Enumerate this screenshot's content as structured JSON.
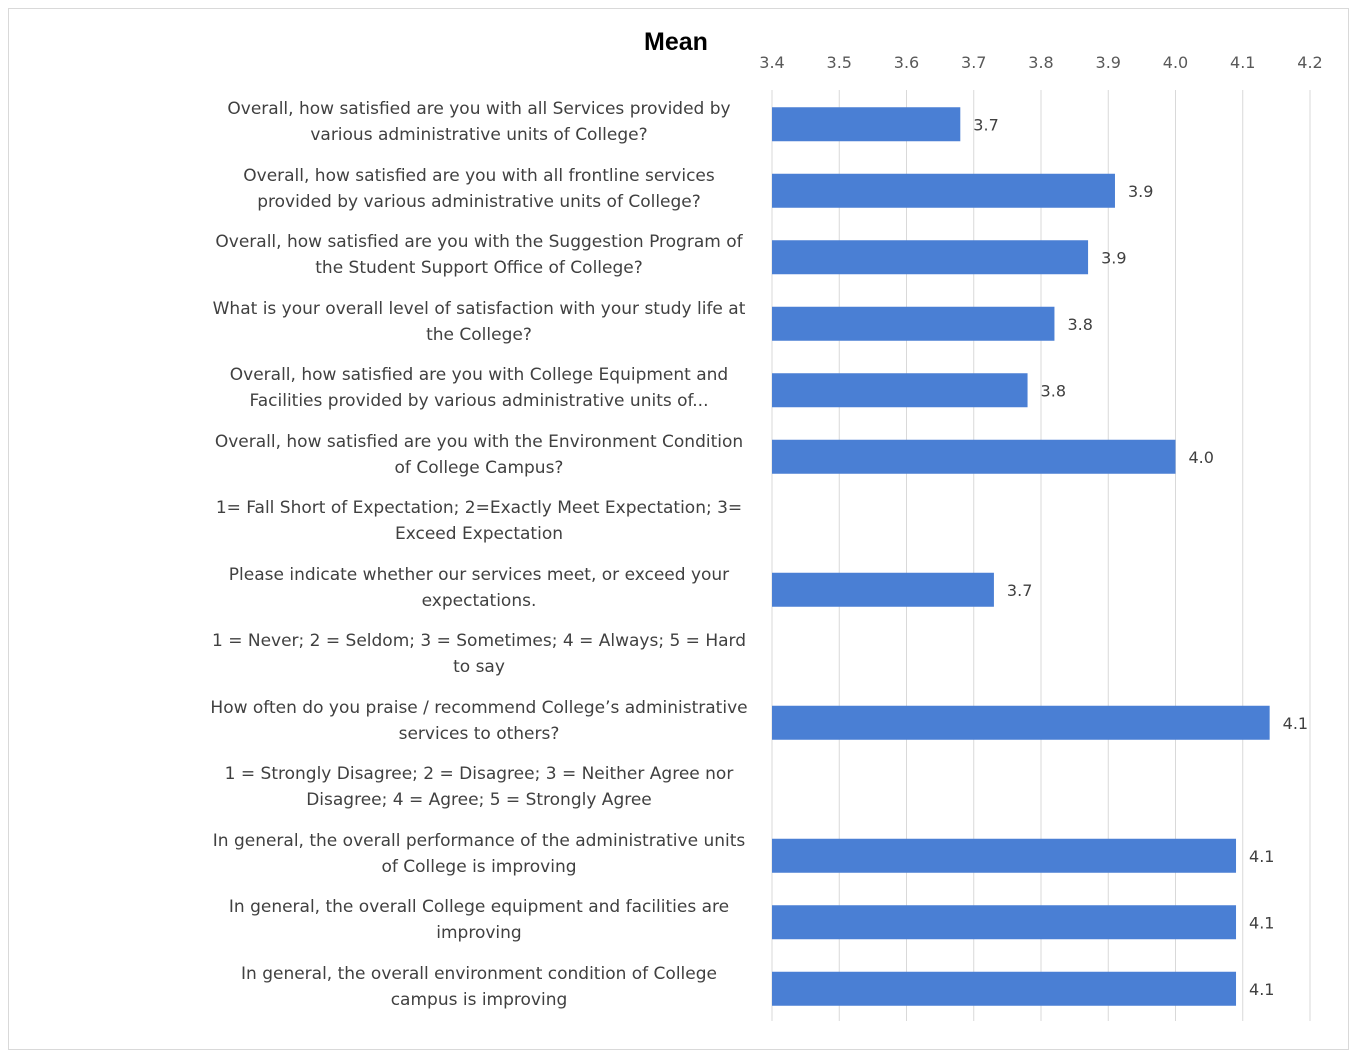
{
  "chart_data": {
    "type": "bar",
    "orientation": "horizontal",
    "title": "Mean",
    "xlim": [
      3.4,
      4.2
    ],
    "x_ticks": [
      "3.4",
      "3.5",
      "3.6",
      "3.7",
      "3.8",
      "3.9",
      "4.0",
      "4.1",
      "4.2"
    ],
    "grid": "vertical",
    "bar_color": "#4a7fd4",
    "categories": [
      "Overall, how satisfied are you with all Services provided by various administrative units of College?",
      "Overall, how satisfied are you with all frontline services provided by various administrative units of College?",
      "Overall, how satisfied are you with the Suggestion Program of the  Student Support Office of College?",
      "What is your overall level of satisfaction with your study life at the College?",
      "Overall, how satisfied are you with College Equipment and Facilities provided by various administrative units of...",
      "Overall, how satisfied are you with the Environment Condition of College Campus?",
      "1= Fall Short of Expectation; 2=Exactly Meet Expectation; 3= Exceed Expectation",
      "Please indicate whether our services meet, or exceed your expectations.",
      "1 = Never; 2 = Seldom; 3 = Sometimes; 4 = Always; 5 = Hard to say",
      "How often do you praise / recommend College’s administrative services to others?",
      "1 = Strongly Disagree; 2 = Disagree; 3 = Neither Agree nor Disagree; 4 = Agree; 5 = Strongly Agree",
      "In general, the overall performance of the administrative units of College is improving",
      "In general, the overall College equipment and facilities are improving",
      "In general, the overall environment condition of College campus is improving"
    ],
    "values": [
      3.68,
      3.91,
      3.87,
      3.82,
      3.78,
      4.0,
      null,
      3.73,
      null,
      4.14,
      null,
      4.09,
      4.09,
      4.09
    ],
    "value_labels": [
      "3.7",
      "3.9",
      "3.9",
      "3.8",
      "3.8",
      "4.0",
      "",
      "3.7",
      "",
      "4.1",
      "",
      "4.1",
      "4.1",
      "4.1"
    ]
  }
}
